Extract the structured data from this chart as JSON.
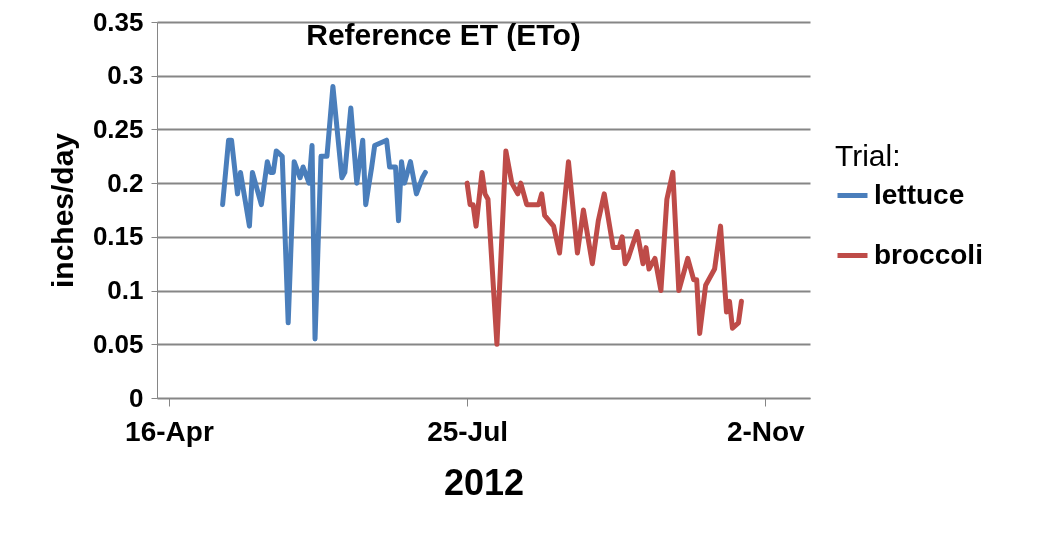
{
  "chart_data": {
    "type": "line",
    "title": "Reference ET (ETo)",
    "xlabel": "2012",
    "ylabel": "inches/day",
    "legend_title": "Trial:",
    "legend": "right",
    "grid": "y",
    "line_style": "solid",
    "xlim": [
      "2012-04-12",
      "2012-11-17"
    ],
    "xticks": [
      {
        "value": "2012-04-16",
        "label": "16-Apr"
      },
      {
        "value": "2012-07-25",
        "label": "25-Jul"
      },
      {
        "value": "2012-11-02",
        "label": "2-Nov"
      }
    ],
    "ylim": [
      0,
      0.35
    ],
    "yticks": [
      0,
      0.05,
      0.1,
      0.15,
      0.2,
      0.25,
      0.3,
      0.35
    ],
    "series": [
      {
        "name": "lettuce",
        "color": "#4a7ebb",
        "x": [
          "2012-05-04",
          "2012-05-06",
          "2012-05-07",
          "2012-05-09",
          "2012-05-10",
          "2012-05-13",
          "2012-05-14",
          "2012-05-17",
          "2012-05-19",
          "2012-05-20",
          "2012-05-21",
          "2012-05-22",
          "2012-05-24",
          "2012-05-26",
          "2012-05-28",
          "2012-05-30",
          "2012-05-31",
          "2012-06-02",
          "2012-06-03",
          "2012-06-04",
          "2012-06-06",
          "2012-06-08",
          "2012-06-10",
          "2012-06-13",
          "2012-06-14",
          "2012-06-16",
          "2012-06-18",
          "2012-06-20",
          "2012-06-21",
          "2012-06-23",
          "2012-06-24",
          "2012-06-28",
          "2012-06-29",
          "2012-07-01",
          "2012-07-02",
          "2012-07-03",
          "2012-07-04",
          "2012-07-06",
          "2012-07-08",
          "2012-07-10",
          "2012-07-11"
        ],
        "values": [
          0.18,
          0.24,
          0.24,
          0.19,
          0.21,
          0.16,
          0.21,
          0.18,
          0.22,
          0.21,
          0.21,
          0.23,
          0.225,
          0.07,
          0.22,
          0.205,
          0.215,
          0.2,
          0.235,
          0.055,
          0.225,
          0.225,
          0.29,
          0.205,
          0.21,
          0.27,
          0.2,
          0.24,
          0.18,
          0.215,
          0.235,
          0.24,
          0.215,
          0.215,
          0.165,
          0.22,
          0.2,
          0.22,
          0.19,
          0.205,
          0.21
        ]
      },
      {
        "name": "broccoli",
        "color": "#be4b48",
        "x": [
          "2012-07-25",
          "2012-07-26",
          "2012-07-27",
          "2012-07-28",
          "2012-07-30",
          "2012-07-31",
          "2012-08-01",
          "2012-08-04",
          "2012-08-07",
          "2012-08-09",
          "2012-08-11",
          "2012-08-12",
          "2012-08-14",
          "2012-08-18",
          "2012-08-19",
          "2012-08-20",
          "2012-08-23",
          "2012-08-25",
          "2012-08-28",
          "2012-08-31",
          "2012-09-02",
          "2012-09-05",
          "2012-09-07",
          "2012-09-09",
          "2012-09-12",
          "2012-09-14",
          "2012-09-15",
          "2012-09-16",
          "2012-09-17",
          "2012-09-20",
          "2012-09-22",
          "2012-09-23",
          "2012-09-24",
          "2012-09-26",
          "2012-09-28",
          "2012-09-30",
          "2012-10-02",
          "2012-10-04",
          "2012-10-07",
          "2012-10-09",
          "2012-10-10",
          "2012-10-11",
          "2012-10-13",
          "2012-10-16",
          "2012-10-18",
          "2012-10-20",
          "2012-10-21",
          "2012-10-22",
          "2012-10-24",
          "2012-10-25"
        ],
        "values": [
          0.2,
          0.18,
          0.18,
          0.16,
          0.21,
          0.19,
          0.185,
          0.05,
          0.23,
          0.2,
          0.19,
          0.2,
          0.18,
          0.18,
          0.19,
          0.17,
          0.16,
          0.135,
          0.22,
          0.135,
          0.175,
          0.125,
          0.165,
          0.19,
          0.14,
          0.14,
          0.15,
          0.125,
          0.13,
          0.155,
          0.125,
          0.14,
          0.12,
          0.13,
          0.1,
          0.185,
          0.21,
          0.1,
          0.13,
          0.11,
          0.11,
          0.06,
          0.105,
          0.12,
          0.16,
          0.08,
          0.09,
          0.065,
          0.07,
          0.09
        ]
      }
    ]
  }
}
